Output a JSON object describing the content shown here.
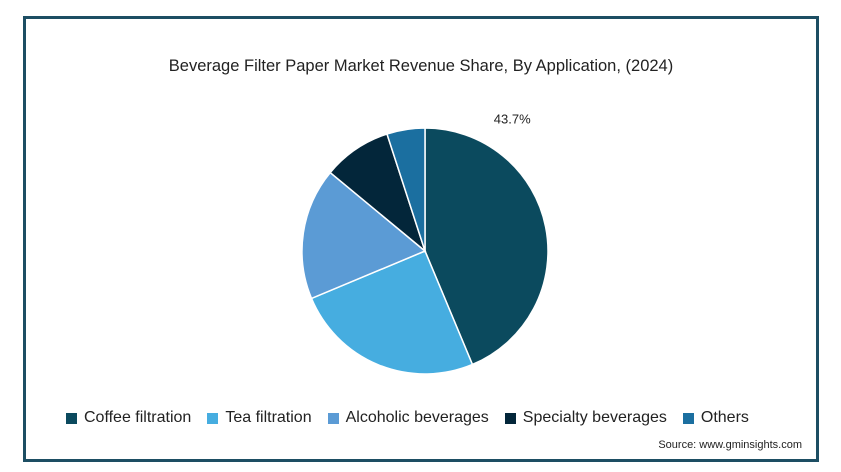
{
  "chart_data": {
    "type": "pie",
    "title": "Beverage Filter Paper Market Revenue Share, By Application, (2024)",
    "slices": [
      {
        "name": "Coffee filtration",
        "value": 43.7,
        "color": "#0b4a5e"
      },
      {
        "name": "Tea filtration",
        "value": 25.0,
        "color": "#46ade0"
      },
      {
        "name": "Alcoholic beverages",
        "value": 17.3,
        "color": "#5b9bd5"
      },
      {
        "name": "Specialty beverages",
        "value": 9.0,
        "color": "#03263a"
      },
      {
        "name": "Others",
        "value": 5.0,
        "color": "#1b6fa0"
      }
    ],
    "data_labels": [
      {
        "slice": "Coffee filtration",
        "text": "43.7%"
      }
    ],
    "legend_position": "bottom"
  },
  "source": "Source: www.gminsights.com"
}
